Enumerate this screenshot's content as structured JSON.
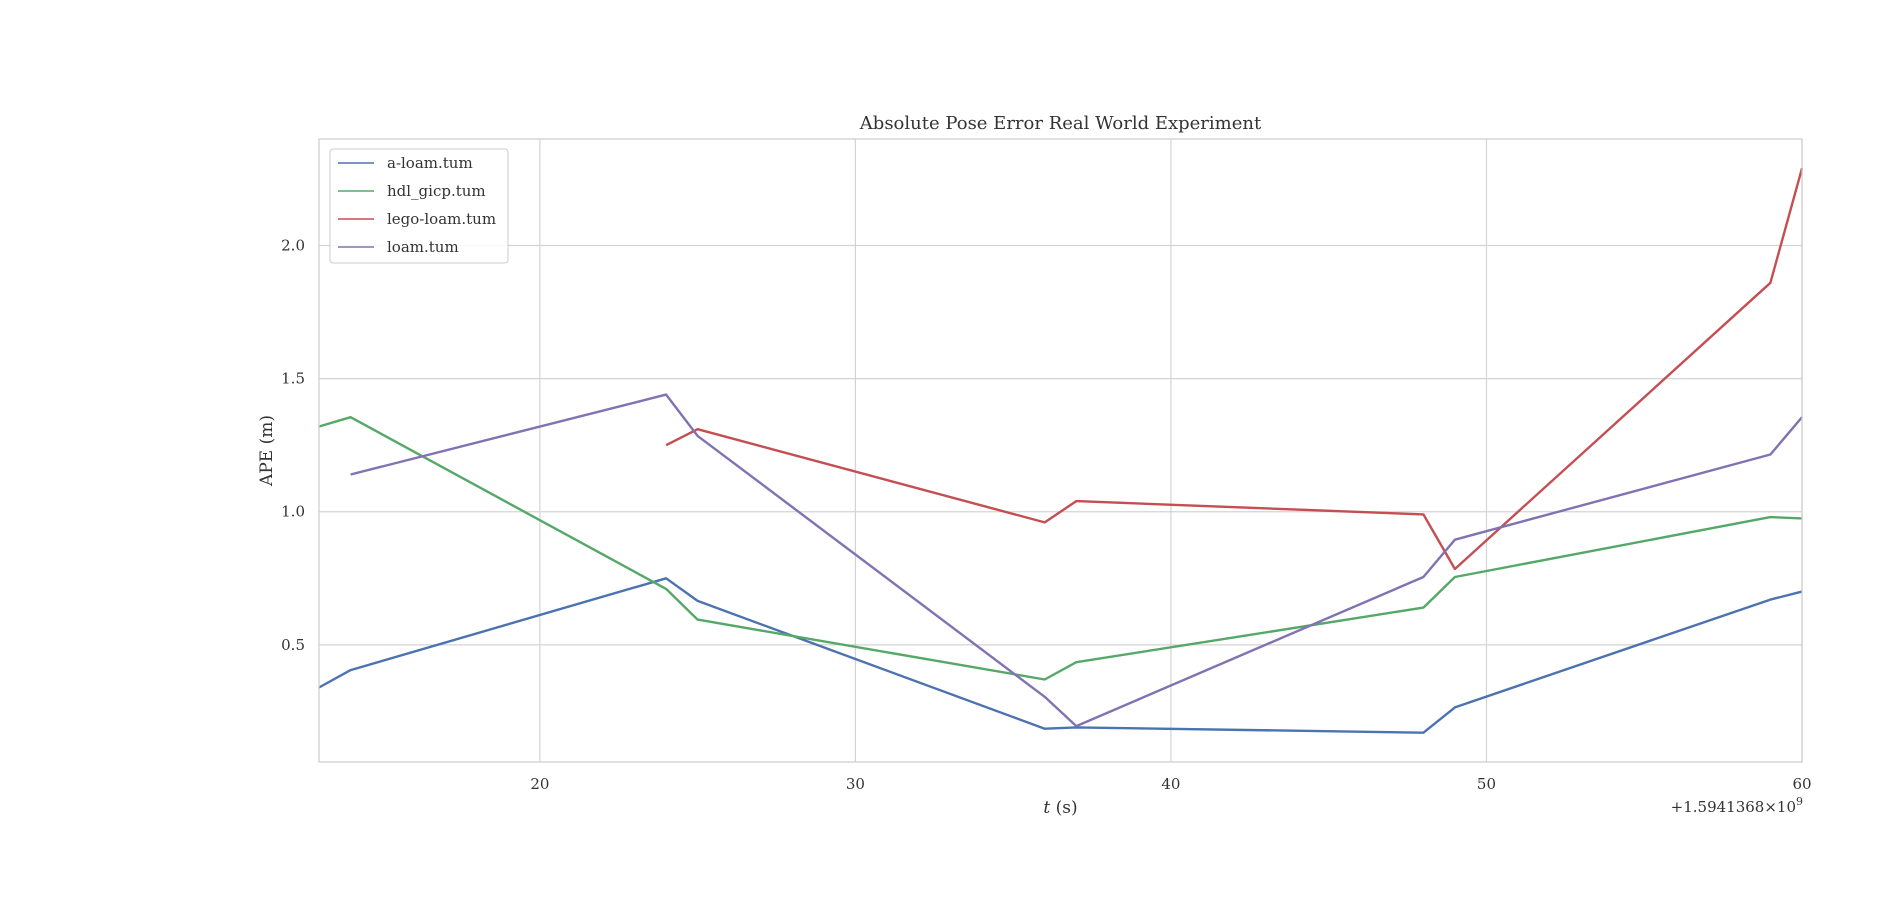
{
  "chart_data": {
    "type": "line",
    "title": "Absolute Pose Error Real World Experiment",
    "xlabel_var": "t",
    "xlabel_unit": " (s)",
    "ylabel": "APE (m)",
    "x_offset_label": "+1.5941368×10",
    "x_offset_exp": "9",
    "xlim": [
      13,
      60
    ],
    "ylim": [
      0.06,
      2.4
    ],
    "xticks": [
      20,
      30,
      40,
      50,
      60
    ],
    "yticks": [
      0.5,
      1.0,
      1.5,
      2.0
    ],
    "xtick_labels": [
      "20",
      "30",
      "40",
      "50",
      "60"
    ],
    "ytick_labels": [
      "0.5",
      "1.0",
      "1.5",
      "2.0"
    ],
    "grid": true,
    "legend_position": "top-left",
    "series": [
      {
        "name": "a-loam.tum",
        "color": "#4c72b0",
        "x": [
          13,
          14,
          24,
          25,
          36,
          37,
          48,
          49,
          59,
          60
        ],
        "y": [
          0.34,
          0.405,
          0.75,
          0.665,
          0.185,
          0.19,
          0.17,
          0.265,
          0.67,
          0.7
        ]
      },
      {
        "name": "hdl_gicp.tum",
        "color": "#55a868",
        "x": [
          13,
          14,
          24,
          25,
          36,
          37,
          48,
          49,
          59,
          60
        ],
        "y": [
          1.32,
          1.355,
          0.71,
          0.595,
          0.37,
          0.435,
          0.64,
          0.755,
          0.98,
          0.975
        ]
      },
      {
        "name": "lego-loam.tum",
        "color": "#c44e52",
        "x": [
          24,
          25,
          36,
          37,
          48,
          49,
          59,
          60
        ],
        "y": [
          1.25,
          1.31,
          0.96,
          1.04,
          0.99,
          0.785,
          1.86,
          2.29
        ]
      },
      {
        "name": "loam.tum",
        "color": "#8172b2",
        "x": [
          14,
          24,
          25,
          36,
          37,
          48,
          49,
          59,
          60
        ],
        "y": [
          1.14,
          1.44,
          1.285,
          0.305,
          0.195,
          0.755,
          0.895,
          1.215,
          1.355
        ]
      }
    ]
  }
}
